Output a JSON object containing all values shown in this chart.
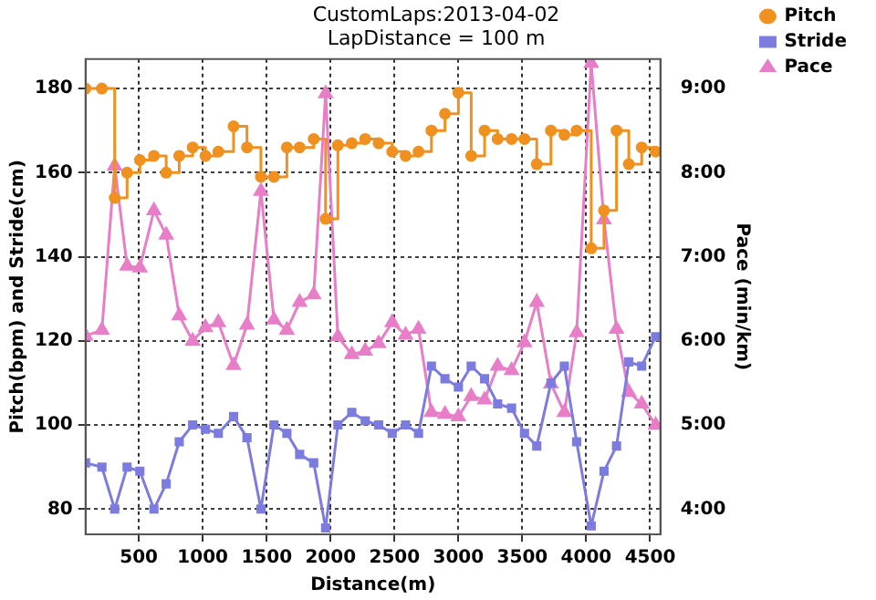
{
  "chart_data": {
    "type": "line",
    "title": "CustomLaps:2013-04-02",
    "subtitle": "LapDistance = 100 m",
    "xlabel": "Distance(m)",
    "ylabel": "Pitch(bpm) and Stride(cm)",
    "y2label": "Pace (min/km)",
    "x": [
      83,
      211,
      311,
      408,
      508,
      618,
      714,
      816,
      921,
      1021,
      1122,
      1241,
      1346,
      1455,
      1557,
      1658,
      1758,
      1868,
      1961,
      2057,
      2166,
      2271,
      2376,
      2482,
      2587,
      2688,
      2789,
      2895,
      3000,
      3100,
      3205,
      3307,
      3416,
      3517,
      3613,
      3724,
      3829,
      3925,
      4039,
      4139,
      4237,
      4333,
      4434,
      4543
    ],
    "series": [
      {
        "name": "Pitch",
        "type": "step",
        "color": "#f0901e",
        "marker": "circle",
        "values": [
          180,
          180,
          154,
          160,
          163,
          164,
          160,
          164,
          166,
          164,
          165,
          171,
          166,
          159,
          159,
          166,
          166,
          168,
          149,
          166.5,
          167,
          168,
          167,
          165,
          164,
          165,
          170,
          174,
          179,
          164,
          170,
          168,
          168,
          168,
          162,
          170,
          169,
          170,
          142,
          151,
          170,
          162,
          166,
          165
        ]
      },
      {
        "name": "Stride",
        "type": "line",
        "color": "#7b7be0",
        "marker": "square",
        "values": [
          91,
          90,
          80,
          90,
          89,
          80,
          86,
          96,
          100,
          99,
          98,
          102,
          97,
          80,
          100,
          98,
          93,
          91,
          75.5,
          100,
          103,
          101,
          100,
          98,
          100,
          98,
          114,
          111,
          109,
          114,
          111,
          105,
          104,
          98,
          95,
          110,
          114,
          96,
          76,
          89,
          95,
          115,
          114,
          121
        ]
      },
      {
        "name": "Pace",
        "type": "line",
        "axis": "y2",
        "color": "#e87dc8",
        "marker": "triangle",
        "values": [
          6.06,
          6.13,
          8.08,
          6.89,
          6.87,
          7.55,
          7.26,
          6.3,
          6,
          6.16,
          6.22,
          5.71,
          6.19,
          7.78,
          6.25,
          6.13,
          6.46,
          6.55,
          8.94,
          6.05,
          5.84,
          5.88,
          5.97,
          6.22,
          6.07,
          6.14,
          5.15,
          5.13,
          5.1,
          5.34,
          5.3,
          5.7,
          5.65,
          5.98,
          6.46,
          5.49,
          5.15,
          6.1,
          9.3,
          7.44,
          6.14,
          5.39,
          5.25,
          5
        ]
      }
    ],
    "xlim": [
      83,
      4580
    ],
    "xticks": [
      500,
      1000,
      1500,
      2000,
      2500,
      3000,
      3500,
      4000,
      4500
    ],
    "ylim": [
      74,
      187
    ],
    "yticks": [
      80,
      100,
      120,
      140,
      160,
      180
    ],
    "y2lim": [
      3.7,
      9.35
    ],
    "y2ticks": [
      {
        "value": 4,
        "label": "4:00"
      },
      {
        "value": 5,
        "label": "5:00"
      },
      {
        "value": 6,
        "label": "6:00"
      },
      {
        "value": 7,
        "label": "7:00"
      },
      {
        "value": 8,
        "label": "8:00"
      },
      {
        "value": 9,
        "label": "9:00"
      }
    ],
    "grid": true,
    "legend": "top right",
    "line_style": "solid"
  }
}
